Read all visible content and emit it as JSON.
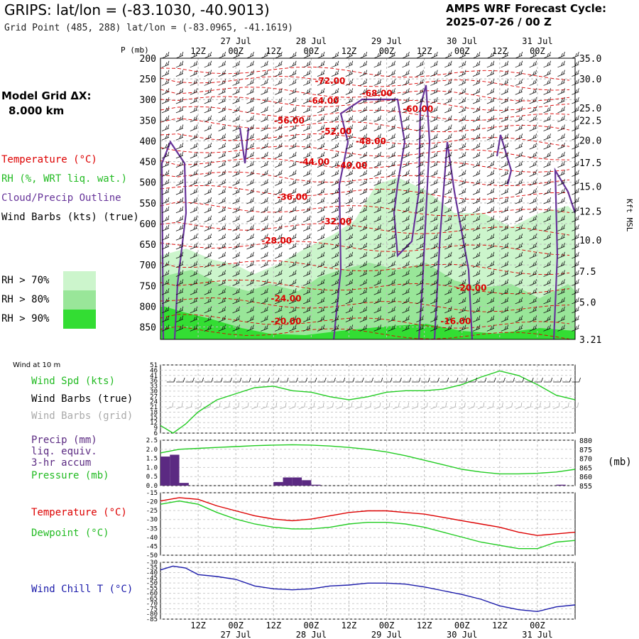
{
  "header": {
    "title": "GRIPS:  lat/lon = (-83.1030, -40.9013)",
    "subtitle": "Grid Point (485, 288) lat/lon = (-83.0965, -41.1619)",
    "cycle_label": "AMPS WRF Forecast Cycle:",
    "cycle_value": "2025-07-26 / 00  Z"
  },
  "model_grid": {
    "label": "Model Grid ΔX:",
    "value": "8.000 km"
  },
  "legend": {
    "temperature": "Temperature (°C)",
    "rh": "RH (%, WRT liq. wat.)",
    "cloud": "Cloud/Precip Outline",
    "wind": "Wind Barbs (kts) (true)",
    "rh70": "RH > 70%",
    "rh80": "RH > 80%",
    "rh90": "RH > 90%"
  },
  "colors": {
    "temperature": "#dd0000",
    "rh70": "#ccf5cc",
    "rh80": "#99e699",
    "rh90": "#33dd33",
    "cloud": "#663399",
    "precip": "#5b2a82",
    "pressure": "#22cc22",
    "dewpoint": "#22cc22",
    "windspd": "#22cc22",
    "windchill": "#1a1aaa",
    "grid_barbs": "#aaaaaa"
  },
  "time_axis": {
    "ticks_top": [
      "12Z",
      "00Z",
      "12Z",
      "00Z",
      "12Z",
      "00Z",
      "12Z",
      "00Z",
      "12Z",
      "00Z"
    ],
    "dates_top": [
      "27 Jul",
      "28 Jul",
      "29 Jul",
      "30 Jul",
      "31 Jul"
    ],
    "hours_range": [
      0,
      132
    ]
  },
  "chart_data": [
    {
      "id": "cross_section",
      "type": "heatmap",
      "ylabel_left": "P (mb)",
      "ylabel_right": "Kft MSL",
      "pressure_ticks": [
        200,
        250,
        300,
        350,
        400,
        450,
        500,
        550,
        600,
        650,
        700,
        750,
        800,
        850
      ],
      "height_ticks": [
        {
          "label": "35.0",
          "p": 200
        },
        {
          "label": "30.0",
          "p": 250
        },
        {
          "label": "25.0",
          "p": 320
        },
        {
          "label": "22.5",
          "p": 350
        },
        {
          "label": "20.0",
          "p": 398
        },
        {
          "label": "17.5",
          "p": 452
        },
        {
          "label": "15.0",
          "p": 510
        },
        {
          "label": "12.5",
          "p": 570
        },
        {
          "label": "10.0",
          "p": 640
        },
        {
          "label": "7.5",
          "p": 715
        },
        {
          "label": "5.0",
          "p": 790
        },
        {
          "label": "3.21",
          "p": 880
        }
      ],
      "ylim": [
        200,
        880
      ],
      "isotherm_labels": [
        {
          "text": "-72.00",
          "t": 54,
          "p": 262
        },
        {
          "text": "-68.00",
          "t": 69,
          "p": 292
        },
        {
          "text": "-64.00",
          "t": 52,
          "p": 310
        },
        {
          "text": "-60.00",
          "t": 82,
          "p": 330
        },
        {
          "text": "-56.00",
          "t": 41,
          "p": 358
        },
        {
          "text": "-52.00",
          "t": 56,
          "p": 384
        },
        {
          "text": "-48.00",
          "t": 67,
          "p": 408
        },
        {
          "text": "-44.00",
          "t": 49,
          "p": 458
        },
        {
          "text": "-40.00",
          "t": 61,
          "p": 466
        },
        {
          "text": "-36.00",
          "t": 42,
          "p": 543
        },
        {
          "text": "-32.00",
          "t": 56,
          "p": 602
        },
        {
          "text": "-28.00",
          "t": 37,
          "p": 648
        },
        {
          "text": "-24.00",
          "t": 40,
          "p": 788
        },
        {
          "text": "-20.00",
          "t": 99,
          "p": 762
        },
        {
          "text": "-20.00",
          "t": 40,
          "p": 843
        },
        {
          "text": "-16.00",
          "t": 94,
          "p": 843
        }
      ]
    },
    {
      "id": "wind10m",
      "type": "line",
      "panel_label": "Wind at 10 m",
      "labels": [
        "Wind Spd (kts)",
        "Wind Barbs (true)",
        "Wind Barbs (grid)"
      ],
      "yticks": [
        "51",
        "46",
        "41",
        "36",
        "33",
        "30",
        "27",
        "24",
        "21",
        "18",
        "15",
        "12",
        "9",
        "6"
      ],
      "ylim": [
        6,
        51
      ],
      "x": [
        0,
        4,
        8,
        12,
        18,
        24,
        30,
        36,
        42,
        48,
        54,
        60,
        66,
        72,
        78,
        84,
        90,
        96,
        102,
        108,
        114,
        120,
        126,
        132
      ],
      "series": [
        {
          "name": "Wind Spd (kts)",
          "values": [
            11,
            6,
            12,
            20,
            28,
            32,
            36,
            37,
            34,
            33,
            30,
            28,
            30,
            33,
            34,
            34,
            35,
            38,
            43,
            47,
            44,
            38,
            31,
            28
          ]
        }
      ]
    },
    {
      "id": "precip_pressure",
      "type": "bar",
      "labels": [
        "Precip (mm)",
        "liq. equiv.",
        "3-hr accum",
        "Pressure (mb)"
      ],
      "ylabel_right": "(mb)",
      "yticks_left": [
        "2.5",
        "2.0",
        "1.5",
        "1.0",
        "0.5",
        "0.0"
      ],
      "yticks_right": [
        "880",
        "875",
        "870",
        "865",
        "860",
        "855"
      ],
      "ylim_left": [
        0,
        2.5
      ],
      "ylim_right": [
        855,
        880
      ],
      "precip_x": [
        1.5,
        4.5,
        7.5,
        37.5,
        40.5,
        43.5,
        46.5,
        49.5,
        127.5
      ],
      "precip": [
        1.6,
        1.7,
        0.15,
        0.2,
        0.45,
        0.45,
        0.3,
        0.05,
        0.05
      ],
      "pressure_x": [
        0,
        6,
        12,
        18,
        24,
        30,
        36,
        42,
        48,
        54,
        60,
        66,
        72,
        78,
        84,
        90,
        96,
        102,
        108,
        114,
        120,
        126,
        132
      ],
      "pressure": [
        873,
        875,
        875.5,
        876,
        876.5,
        877,
        877.3,
        877.5,
        877.3,
        876.8,
        876,
        875,
        873.5,
        871.5,
        869,
        866.5,
        864,
        862.5,
        861.5,
        861.5,
        861.8,
        862.5,
        864
      ]
    },
    {
      "id": "temp_dew",
      "type": "line",
      "labels": [
        "Temperature (°C)",
        "Dewpoint (°C)"
      ],
      "yticks": [
        "-15",
        "-20",
        "-25",
        "-30",
        "-35",
        "-40",
        "-45",
        "-50"
      ],
      "ylim": [
        -50,
        -12
      ],
      "x": [
        0,
        6,
        12,
        18,
        24,
        30,
        36,
        42,
        48,
        54,
        60,
        66,
        72,
        78,
        84,
        90,
        96,
        102,
        108,
        114,
        120,
        126,
        132
      ],
      "series": [
        {
          "name": "Temperature (°C)",
          "values": [
            -17,
            -15,
            -16,
            -20,
            -23,
            -26,
            -28,
            -29,
            -28,
            -26,
            -24,
            -23,
            -23,
            -24,
            -25,
            -27,
            -29,
            -31,
            -33,
            -36,
            -38,
            -37,
            -36
          ]
        },
        {
          "name": "Dewpoint (°C)",
          "values": [
            -19,
            -17,
            -19,
            -24,
            -28,
            -31,
            -33,
            -34,
            -34,
            -33,
            -31,
            -30,
            -30,
            -31,
            -33,
            -36,
            -39,
            -42,
            -44,
            -46,
            -46,
            -42,
            -41
          ]
        }
      ]
    },
    {
      "id": "windchill",
      "type": "line",
      "labels": [
        "Wind Chill T (°C)"
      ],
      "yticks": [
        "-30",
        "-35",
        "-40",
        "-45",
        "-50",
        "-55",
        "-60",
        "-65",
        "-70",
        "-75",
        "-80",
        "-85"
      ],
      "ylim": [
        -85,
        -25
      ],
      "x": [
        0,
        4,
        8,
        12,
        18,
        24,
        30,
        36,
        42,
        48,
        54,
        60,
        66,
        72,
        78,
        84,
        90,
        96,
        102,
        108,
        114,
        120,
        126,
        132
      ],
      "series": [
        {
          "name": "Wind Chill T (°C)",
          "values": [
            -35,
            -31,
            -33,
            -40,
            -42,
            -45,
            -52,
            -55,
            -56,
            -55,
            -52,
            -51,
            -49,
            -49,
            -50,
            -53,
            -57,
            -61,
            -66,
            -73,
            -77,
            -79,
            -74,
            -72
          ]
        }
      ]
    }
  ]
}
